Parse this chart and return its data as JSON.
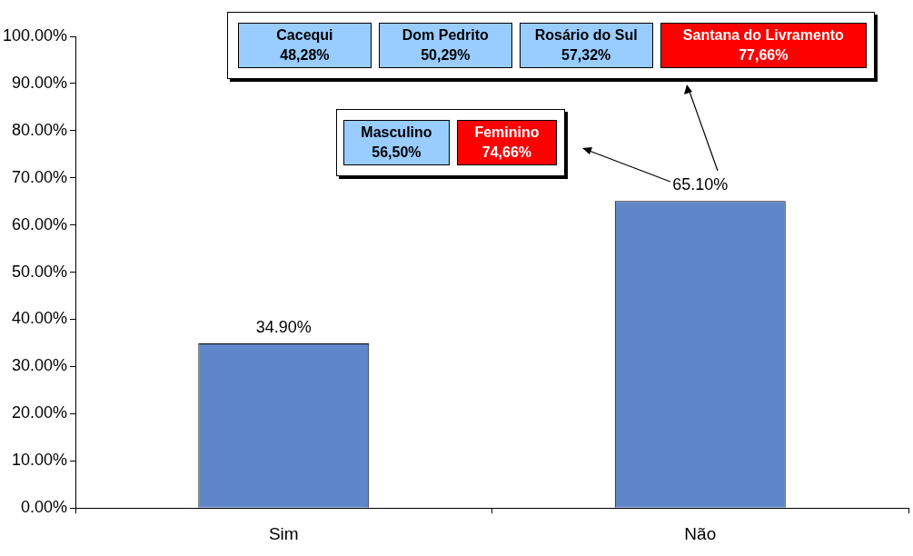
{
  "chart_data": {
    "type": "bar",
    "categories": [
      "Sim",
      "Não"
    ],
    "values": [
      34.9,
      65.1
    ],
    "color": "#5f86c8",
    "value_labels": [
      "34.90%",
      "65.10%"
    ],
    "ylim": [
      0,
      100
    ],
    "yticks": [
      {
        "value": 0,
        "label": "0.00%"
      },
      {
        "value": 10,
        "label": "10.00%"
      },
      {
        "value": 20,
        "label": "20.00%"
      },
      {
        "value": 30,
        "label": "30.00%"
      },
      {
        "value": 40,
        "label": "40.00%"
      },
      {
        "value": 50,
        "label": "50.00%"
      },
      {
        "value": 60,
        "label": "60.00%"
      },
      {
        "value": 70,
        "label": "70.00%"
      },
      {
        "value": 80,
        "label": "80.00%"
      },
      {
        "value": 90,
        "label": "90.00%"
      },
      {
        "value": 100,
        "label": "100.00%"
      }
    ],
    "grid": false,
    "legend": false,
    "annotations": [
      "Cacequi\n48,28%",
      "Dom Pedrito\n50,29%",
      "Rosário do Sul\n57,32%",
      "Santana do Livramento\n77,66%",
      "Masculino\n56,50%",
      "Feminino\n74,66%"
    ]
  }
}
